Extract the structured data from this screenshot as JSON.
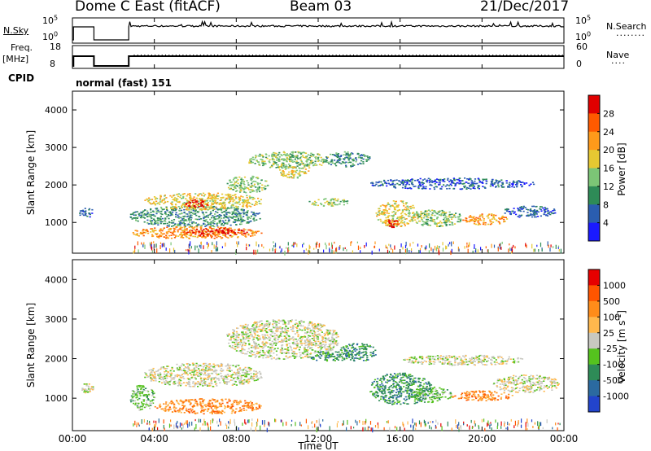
{
  "header": {
    "station": "Dome C East (fitACF)",
    "beam": "Beam 03",
    "date": "21/Dec/2017"
  },
  "panels": {
    "nsky": {
      "label": "N.Sky",
      "ticks": [
        "10^5",
        "10^0"
      ],
      "right_label": "N.Search"
    },
    "freq": {
      "label_line1": "Freq.",
      "label_line2": "[MHz]",
      "ticks_left": [
        "18",
        "8"
      ],
      "ticks_right": [
        "60",
        "0"
      ],
      "right_label": "Nave"
    },
    "cpid": {
      "label": "CPID",
      "program": "normal (fast) 151"
    }
  },
  "chart_data": [
    {
      "type": "heatmap",
      "name": "power",
      "ylabel": "Slant Range [km]",
      "ylim": [
        180,
        4500
      ],
      "yticks": [
        "1000",
        "2000",
        "3000",
        "4000"
      ],
      "xlim": [
        0,
        24
      ],
      "colorbar": {
        "label": "Power [dB]",
        "ticks": [
          "4",
          "8",
          "12",
          "16",
          "20",
          "24",
          "28"
        ],
        "range": [
          0,
          32
        ],
        "colors": [
          "#1a1aff",
          "#2a5db0",
          "#2e8b57",
          "#7cc576",
          "#e6c832",
          "#ff9a1a",
          "#ff5a00",
          "#e00000"
        ]
      },
      "regions": [
        {
          "t0": 0.3,
          "t1": 1.0,
          "r0": 1150,
          "r1": 1400,
          "level": 1
        },
        {
          "t0": 2.8,
          "t1": 9.2,
          "r0": 900,
          "r1": 1450,
          "level": 2
        },
        {
          "t0": 2.8,
          "t1": 9.2,
          "r0": 580,
          "r1": 900,
          "level": 5
        },
        {
          "t0": 5.5,
          "t1": 8.5,
          "r0": 650,
          "r1": 850,
          "level": 7
        },
        {
          "t0": 3.5,
          "t1": 9.2,
          "r0": 1350,
          "r1": 1800,
          "level": 4
        },
        {
          "t0": 5.5,
          "t1": 6.6,
          "r0": 1420,
          "r1": 1620,
          "level": 7
        },
        {
          "t0": 7.5,
          "t1": 9.5,
          "r0": 1800,
          "r1": 2250,
          "level": 3
        },
        {
          "t0": 8.5,
          "t1": 12.6,
          "r0": 2450,
          "r1": 2900,
          "level": 3
        },
        {
          "t0": 10.0,
          "t1": 11.5,
          "r0": 2200,
          "r1": 2500,
          "level": 4
        },
        {
          "t0": 11.5,
          "t1": 13.5,
          "r0": 1450,
          "r1": 1650,
          "level": 3
        },
        {
          "t0": 12.3,
          "t1": 14.5,
          "r0": 2500,
          "r1": 2900,
          "level": 2
        },
        {
          "t0": 14.8,
          "t1": 16.8,
          "r0": 900,
          "r1": 1600,
          "level": 4
        },
        {
          "t0": 15.3,
          "t1": 15.9,
          "r0": 880,
          "r1": 1100,
          "level": 7
        },
        {
          "t0": 16.5,
          "t1": 19.0,
          "r0": 900,
          "r1": 1350,
          "level": 3
        },
        {
          "t0": 19.0,
          "t1": 21.2,
          "r0": 950,
          "r1": 1250,
          "level": 5
        },
        {
          "t0": 21.0,
          "t1": 23.6,
          "r0": 1150,
          "r1": 1450,
          "level": 1
        },
        {
          "t0": 14.5,
          "t1": 22.5,
          "r0": 1900,
          "r1": 2200,
          "level": 1
        }
      ]
    },
    {
      "type": "heatmap",
      "name": "velocity",
      "ylabel": "Slant Range [km]",
      "ylim": [
        180,
        4500
      ],
      "yticks": [
        "1000",
        "2000",
        "3000",
        "4000"
      ],
      "xlim": [
        0,
        24
      ],
      "xlabel": "Time UT",
      "xticks": [
        "00:00",
        "04:00",
        "08:00",
        "12:00",
        "16:00",
        "20:00",
        "00:00"
      ],
      "colorbar": {
        "label": "Velocity [m s^-1]",
        "ticks": [
          "1000",
          "500",
          "100",
          "25",
          "-25",
          "-100",
          "-500",
          "-1000"
        ],
        "colors": [
          "#2244cc",
          "#2b6aa0",
          "#2e8b57",
          "#55c21e",
          "#c8c8c0",
          "#ffb84d",
          "#ff8c1a",
          "#ff5500",
          "#e60000"
        ]
      },
      "regions": [
        {
          "t0": 0.3,
          "t1": 1.0,
          "r0": 1150,
          "r1": 1400,
          "level": 4
        },
        {
          "t0": 2.8,
          "t1": 4.0,
          "r0": 700,
          "r1": 1350,
          "level": 3
        },
        {
          "t0": 4.0,
          "t1": 9.2,
          "r0": 620,
          "r1": 1000,
          "level": 6
        },
        {
          "t0": 3.5,
          "t1": 9.2,
          "r0": 1300,
          "r1": 1900,
          "level": 4
        },
        {
          "t0": 7.5,
          "t1": 13.0,
          "r0": 2000,
          "r1": 3000,
          "level": 4
        },
        {
          "t0": 11.5,
          "t1": 13.5,
          "r0": 1950,
          "r1": 2200,
          "level": 2
        },
        {
          "t0": 13.0,
          "t1": 14.8,
          "r0": 1950,
          "r1": 2400,
          "level": 2
        },
        {
          "t0": 14.5,
          "t1": 17.5,
          "r0": 850,
          "r1": 1650,
          "level": 2
        },
        {
          "t0": 16.5,
          "t1": 18.5,
          "r0": 900,
          "r1": 1300,
          "level": 3
        },
        {
          "t0": 18.5,
          "t1": 21.5,
          "r0": 950,
          "r1": 1200,
          "level": 6
        },
        {
          "t0": 20.5,
          "t1": 23.8,
          "r0": 1150,
          "r1": 1600,
          "level": 4
        },
        {
          "t0": 16.0,
          "t1": 22.0,
          "r0": 1850,
          "r1": 2100,
          "level": 4
        }
      ]
    }
  ]
}
